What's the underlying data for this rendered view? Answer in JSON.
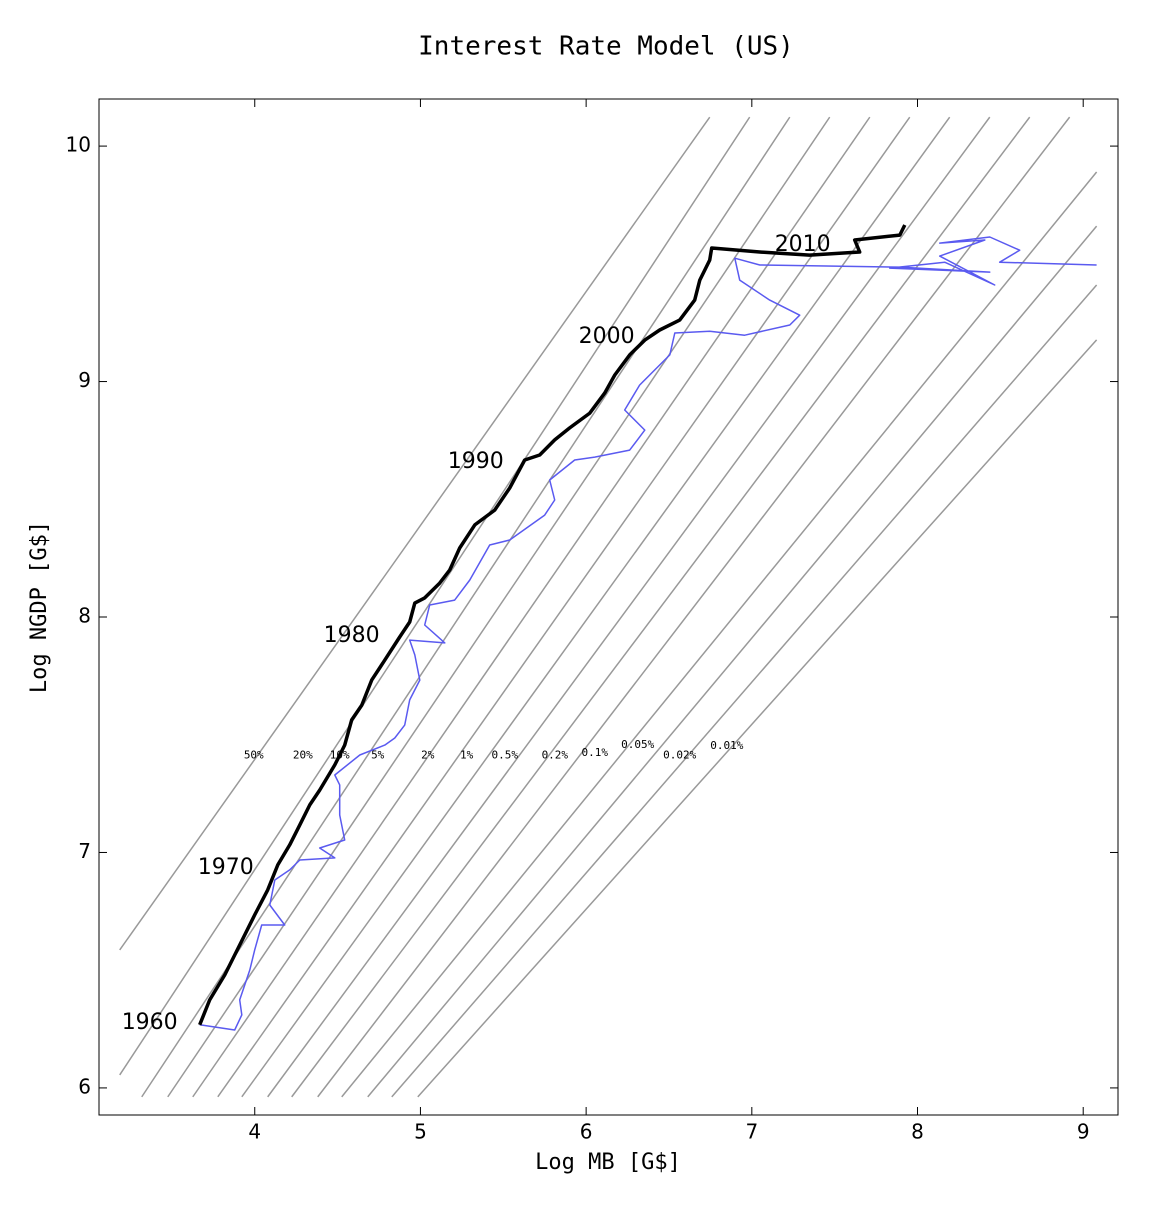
{
  "chart_data": {
    "type": "line",
    "title": "Interest Rate Model (US)",
    "x_label": "Log MB [G$]",
    "y_label": "Log NGDP [G$]",
    "xlim": [
      3.06,
      9.21
    ],
    "ylim": [
      5.885,
      10.2
    ],
    "xticks": [
      4,
      5,
      6,
      7,
      8,
      9
    ],
    "yticks": [
      6,
      7,
      8,
      9,
      10
    ],
    "contour_color": "#999999",
    "contours": [
      {
        "x": [
          3.185,
          6.746
        ],
        "y": [
          6.586,
          10.123
        ]
      },
      {
        "x": [
          3.185,
          6.987
        ],
        "y": [
          6.055,
          10.123
        ]
      },
      {
        "x": [
          3.318,
          7.229
        ],
        "y": [
          5.962,
          10.123
        ]
      },
      {
        "x": [
          3.475,
          7.47
        ],
        "y": [
          5.962,
          10.123
        ]
      },
      {
        "x": [
          3.626,
          7.712
        ],
        "y": [
          5.962,
          10.123
        ]
      },
      {
        "x": [
          3.777,
          7.953
        ],
        "y": [
          5.962,
          10.123
        ]
      },
      {
        "x": [
          3.922,
          8.194
        ],
        "y": [
          5.962,
          10.123
        ]
      },
      {
        "x": [
          4.078,
          8.436
        ],
        "y": [
          5.962,
          10.123
        ]
      },
      {
        "x": [
          4.223,
          8.677
        ],
        "y": [
          5.962,
          10.123
        ]
      },
      {
        "x": [
          4.38,
          8.918
        ],
        "y": [
          5.962,
          10.123
        ]
      },
      {
        "x": [
          4.525,
          9.081
        ],
        "y": [
          5.962,
          9.89
        ]
      },
      {
        "x": [
          4.682,
          9.081
        ],
        "y": [
          5.962,
          9.66
        ]
      },
      {
        "x": [
          4.827,
          9.081
        ],
        "y": [
          5.962,
          9.41
        ]
      },
      {
        "x": [
          4.984,
          9.081
        ],
        "y": [
          5.962,
          9.177
        ]
      }
    ],
    "contour_labels": [
      {
        "text": "50%",
        "x": 3.994,
        "y": 7.412
      },
      {
        "text": "20%",
        "x": 4.29,
        "y": 7.412
      },
      {
        "text": "10%",
        "x": 4.513,
        "y": 7.412
      },
      {
        "text": "5%",
        "x": 4.742,
        "y": 7.412
      },
      {
        "text": "2%",
        "x": 5.044,
        "y": 7.412
      },
      {
        "text": "1%",
        "x": 5.279,
        "y": 7.412
      },
      {
        "text": "0.5%",
        "x": 5.509,
        "y": 7.412
      },
      {
        "text": "0.2%",
        "x": 5.811,
        "y": 7.412
      },
      {
        "text": "0.1%",
        "x": 6.052,
        "y": 7.423
      },
      {
        "text": "0.05%",
        "x": 6.311,
        "y": 7.456
      },
      {
        "text": "0.02%",
        "x": 6.565,
        "y": 7.412
      },
      {
        "text": "0.01%",
        "x": 6.849,
        "y": 7.452
      }
    ],
    "year_labels": [
      {
        "text": "1960",
        "x": 3.366,
        "y": 6.276
      },
      {
        "text": "1970",
        "x": 3.825,
        "y": 6.934
      },
      {
        "text": "1980",
        "x": 4.585,
        "y": 7.919
      },
      {
        "text": "1990",
        "x": 5.334,
        "y": 8.658
      },
      {
        "text": "2000",
        "x": 6.124,
        "y": 9.189
      },
      {
        "text": "2010",
        "x": 7.307,
        "y": 9.58
      }
    ],
    "series": [
      {
        "color": "#5a5af0",
        "width": 1.5,
        "x": [
          3.668,
          3.879,
          3.922,
          3.909,
          3.97,
          4.0,
          4.042,
          4.181,
          4.091,
          4.121,
          4.211,
          4.272,
          4.483,
          4.392,
          4.543,
          4.513,
          4.513,
          4.483,
          4.634,
          4.785,
          4.845,
          4.905,
          4.935,
          4.996,
          4.966,
          4.935,
          5.147,
          5.026,
          5.056,
          5.207,
          5.298,
          5.418,
          5.539,
          5.75,
          5.81,
          5.78,
          5.931,
          6.052,
          6.263,
          6.354,
          6.233,
          6.323,
          6.505,
          6.535,
          6.746,
          6.957,
          7.229,
          7.289,
          7.108,
          6.927,
          6.897,
          7.048,
          7.893,
          8.436,
          7.832,
          8.164,
          8.466,
          8.134,
          8.406,
          8.134,
          8.436,
          8.617,
          8.496,
          9.081
        ],
        "values": [
          6.268,
          6.246,
          6.31,
          6.374,
          6.501,
          6.586,
          6.692,
          6.692,
          6.777,
          6.883,
          6.926,
          6.968,
          6.977,
          7.019,
          7.053,
          7.159,
          7.287,
          7.329,
          7.414,
          7.456,
          7.486,
          7.541,
          7.648,
          7.732,
          7.839,
          7.902,
          7.89,
          7.966,
          8.051,
          8.072,
          8.157,
          8.306,
          8.327,
          8.433,
          8.497,
          8.582,
          8.667,
          8.679,
          8.709,
          8.794,
          8.879,
          8.985,
          9.113,
          9.206,
          9.214,
          9.197,
          9.24,
          9.282,
          9.346,
          9.431,
          9.524,
          9.495,
          9.486,
          9.465,
          9.482,
          9.507,
          9.41,
          9.533,
          9.601,
          9.588,
          9.614,
          9.558,
          9.507,
          9.495
        ]
      },
      {
        "color": "#000000",
        "width": 3.5,
        "x": [
          3.668,
          3.728,
          3.819,
          3.909,
          4.0,
          4.078,
          4.139,
          4.211,
          4.272,
          4.332,
          4.392,
          4.483,
          4.543,
          4.585,
          4.646,
          4.706,
          4.785,
          4.875,
          4.935,
          4.966,
          5.026,
          5.116,
          5.177,
          5.237,
          5.328,
          5.448,
          5.539,
          5.629,
          5.72,
          5.81,
          5.901,
          6.022,
          6.112,
          6.173,
          6.263,
          6.354,
          6.444,
          6.565,
          6.655,
          6.686,
          6.746,
          6.758,
          7.048,
          7.349,
          7.651,
          7.621,
          7.893,
          7.923
        ],
        "values": [
          6.268,
          6.374,
          6.48,
          6.607,
          6.735,
          6.841,
          6.947,
          7.032,
          7.117,
          7.202,
          7.265,
          7.372,
          7.456,
          7.563,
          7.626,
          7.732,
          7.817,
          7.915,
          7.979,
          8.059,
          8.081,
          8.144,
          8.2,
          8.293,
          8.391,
          8.454,
          8.548,
          8.667,
          8.688,
          8.752,
          8.803,
          8.866,
          8.951,
          9.028,
          9.113,
          9.176,
          9.219,
          9.261,
          9.346,
          9.431,
          9.516,
          9.567,
          9.55,
          9.537,
          9.55,
          9.601,
          9.622,
          9.665
        ]
      }
    ]
  }
}
